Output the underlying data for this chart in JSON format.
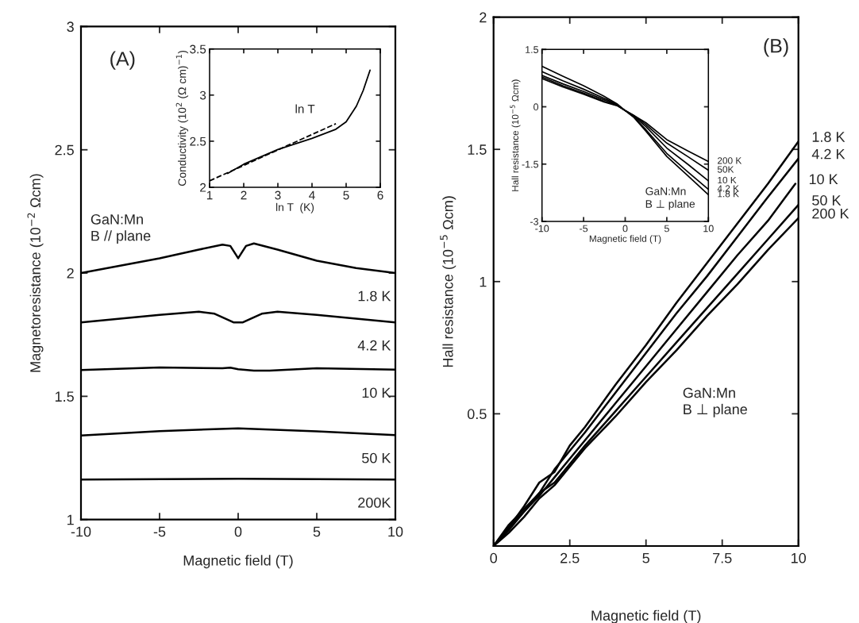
{
  "chart_data": [
    {
      "type": "line",
      "title": "(A)",
      "xlabel": "Magnetic field (T)",
      "ylabel": "Magnetoresistance (10$^{−2}$ Ωcm)",
      "xlim": [
        -10,
        10
      ],
      "ylim": [
        1,
        3
      ],
      "xticks": [
        -10,
        -5,
        0,
        5,
        10
      ],
      "yticks": [
        1,
        1.5,
        2,
        2.5,
        3
      ],
      "annotations": [
        "GaN:Mn\nB // plane"
      ],
      "series": [
        {
          "name": "1.8 K",
          "color": "#000000",
          "x": [
            -10,
            -7.5,
            -5,
            -2.5,
            -1,
            -0.5,
            -0.2,
            0,
            0.2,
            0.5,
            1,
            2.5,
            5,
            7.5,
            10
          ],
          "values": [
            2.0,
            2.03,
            2.06,
            2.095,
            2.115,
            2.11,
            2.08,
            2.06,
            2.08,
            2.11,
            2.12,
            2.095,
            2.05,
            2.02,
            2.0
          ]
        },
        {
          "name": "4.2 K",
          "color": "#000000",
          "x": [
            -10,
            -7.5,
            -5,
            -2.5,
            -1.5,
            -0.8,
            -0.3,
            0,
            0.3,
            0.8,
            1.5,
            2.5,
            5,
            7.5,
            10
          ],
          "values": [
            1.8,
            1.815,
            1.83,
            1.843,
            1.835,
            1.815,
            1.8,
            1.8,
            1.8,
            1.815,
            1.835,
            1.843,
            1.83,
            1.815,
            1.8
          ]
        },
        {
          "name": "10 K",
          "color": "#000000",
          "x": [
            -10,
            -5,
            -1,
            -0.5,
            0,
            1,
            2,
            5,
            10
          ],
          "values": [
            1.607,
            1.617,
            1.614,
            1.616,
            1.61,
            1.604,
            1.604,
            1.614,
            1.608
          ]
        },
        {
          "name": "50 K",
          "color": "#000000",
          "x": [
            -10,
            -5,
            0,
            5,
            10
          ],
          "values": [
            1.341,
            1.359,
            1.37,
            1.358,
            1.343
          ]
        },
        {
          "name": "200K",
          "color": "#000000",
          "x": [
            -10,
            0,
            10
          ],
          "values": [
            1.162,
            1.166,
            1.162
          ]
        }
      ]
    },
    {
      "type": "line",
      "xlabel": "ln T  (K)",
      "ylabel": "Conductivity (10$^{2}$ (Ω cm)$^{−1}$)",
      "xlim": [
        1,
        6
      ],
      "ylim": [
        2,
        3.5
      ],
      "xticks": [
        1,
        2,
        3,
        4,
        5,
        6
      ],
      "yticks": [
        2,
        2.5,
        3,
        3.5
      ],
      "annotations": [
        "ln T"
      ],
      "series": [
        {
          "color": "#000000",
          "line_style": "dashed",
          "x": [
            1,
            4.7
          ],
          "values": [
            2.07,
            2.69
          ]
        },
        {
          "color": "#000000",
          "line_style": "solid",
          "x": [
            1.53,
            2,
            3,
            4,
            4.7,
            5,
            5.3,
            5.5,
            5.7
          ],
          "values": [
            2.15,
            2.25,
            2.41,
            2.53,
            2.63,
            2.71,
            2.88,
            3.05,
            3.27
          ]
        }
      ]
    },
    {
      "type": "line",
      "title": "(B)",
      "xlabel": "Magnetic field (T)",
      "ylabel": "Hall resistance (10$^{−5}$ Ωcm)",
      "xlim": [
        0,
        10
      ],
      "ylim": [
        0,
        2
      ],
      "xticks": [
        0,
        2.5,
        5,
        7.5,
        10
      ],
      "yticks": [
        {
          "value": 0,
          "label": null
        },
        0.5,
        1,
        1.5,
        2
      ],
      "annotations": [
        "GaN:Mn\nB ⊥ plane"
      ],
      "series": [
        {
          "name": "1.8 K",
          "color": "#000000",
          "x": [
            0,
            0.5,
            1,
            1.5,
            2,
            2.5,
            3,
            4,
            5,
            6,
            7,
            8,
            9,
            10
          ],
          "values": [
            0,
            0.07,
            0.15,
            0.24,
            0.28,
            0.38,
            0.45,
            0.61,
            0.76,
            0.92,
            1.07,
            1.22,
            1.37,
            1.53
          ]
        },
        {
          "name": "4.2 K",
          "color": "#000000",
          "x": [
            0,
            0.5,
            1,
            1.5,
            2,
            2.5,
            3,
            4,
            5,
            6,
            7,
            8,
            9,
            10
          ],
          "values": [
            0,
            0.08,
            0.14,
            0.2,
            0.29,
            0.36,
            0.43,
            0.58,
            0.73,
            0.88,
            1.02,
            1.17,
            1.32,
            1.465
          ]
        },
        {
          "name": "10 K",
          "color": "#000000",
          "x": [
            0,
            0.5,
            1,
            1.5,
            2,
            2.5,
            3,
            4,
            5,
            6,
            7,
            8,
            9,
            9.9
          ],
          "values": [
            0,
            0.06,
            0.13,
            0.19,
            0.26,
            0.33,
            0.4,
            0.54,
            0.68,
            0.82,
            0.96,
            1.1,
            1.23,
            1.37
          ]
        },
        {
          "name": "50 K",
          "color": "#000000",
          "x": [
            0,
            0.5,
            1,
            1.5,
            2,
            2.5,
            3,
            4,
            5,
            6,
            7,
            8,
            9,
            10
          ],
          "values": [
            0,
            0.07,
            0.13,
            0.2,
            0.24,
            0.31,
            0.38,
            0.51,
            0.64,
            0.77,
            0.9,
            1.03,
            1.16,
            1.29
          ]
        },
        {
          "name": "200 K",
          "color": "#000000",
          "x": [
            0,
            0.5,
            1,
            1.5,
            2,
            2.5,
            3,
            4,
            5,
            6,
            7,
            8,
            9,
            10
          ],
          "values": [
            0,
            0.05,
            0.11,
            0.18,
            0.23,
            0.3,
            0.37,
            0.49,
            0.62,
            0.74,
            0.87,
            0.99,
            1.12,
            1.24
          ]
        }
      ]
    },
    {
      "type": "line",
      "xlabel": "Magnetic field (T)",
      "ylabel": "Hall resistance (10$^{−5}$ Ωcm)",
      "xlim": [
        -10,
        10
      ],
      "ylim": [
        -3,
        1.5
      ],
      "xticks": [
        -10,
        -5,
        0,
        5,
        10
      ],
      "yticks": [
        -3,
        -1.5,
        0,
        1.5
      ],
      "annotations": [
        "GaN:Mn\nB ⊥ plane"
      ],
      "series": [
        {
          "name": "200 K",
          "color": "#000000",
          "x": [
            -10,
            -7.5,
            -5,
            -2.5,
            -1,
            0,
            1,
            2.5,
            5,
            7.5,
            10
          ],
          "values": [
            1.06,
            0.8,
            0.55,
            0.27,
            0.08,
            -0.1,
            -0.22,
            -0.42,
            -0.86,
            -1.15,
            -1.43
          ]
        },
        {
          "name": "50K",
          "color": "#000000",
          "x": [
            -10,
            -7.5,
            -5,
            -2.5,
            -1,
            0,
            1,
            2.5,
            5,
            7.5,
            10
          ],
          "values": [
            0.92,
            0.68,
            0.46,
            0.22,
            0.06,
            -0.1,
            -0.22,
            -0.47,
            -0.95,
            -1.3,
            -1.66
          ]
        },
        {
          "name": "10 K",
          "color": "#000000",
          "x": [
            -10,
            -7.5,
            -5,
            -2.5,
            -1,
            0,
            1,
            2.5,
            5,
            7.5,
            10
          ],
          "values": [
            0.82,
            0.6,
            0.4,
            0.18,
            0.05,
            -0.1,
            -0.24,
            -0.52,
            -1.08,
            -1.5,
            -1.94
          ]
        },
        {
          "name": "4.2 K",
          "color": "#000000",
          "x": [
            -10,
            -7.5,
            -5,
            -2.5,
            -1,
            0,
            1,
            2.5,
            5,
            7.5,
            10
          ],
          "values": [
            0.78,
            0.55,
            0.36,
            0.14,
            0.04,
            -0.1,
            -0.26,
            -0.6,
            -1.22,
            -1.7,
            -2.16
          ]
        },
        {
          "name": "1.8 K",
          "color": "#000000",
          "x": [
            -10,
            -7.5,
            -5,
            -2.5,
            -1,
            0,
            1,
            2.5,
            5,
            7.5,
            10
          ],
          "values": [
            0.74,
            0.52,
            0.33,
            0.12,
            0.03,
            -0.1,
            -0.27,
            -0.64,
            -1.3,
            -1.8,
            -2.3
          ]
        }
      ]
    }
  ]
}
